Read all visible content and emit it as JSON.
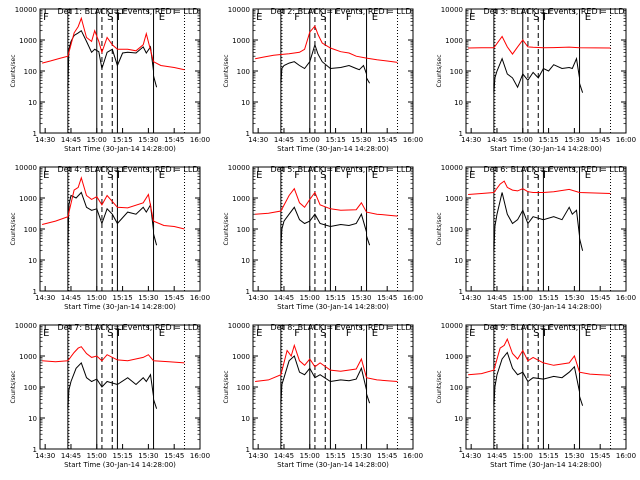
{
  "page": {
    "background": "#ffffff",
    "ink_color": "#000000",
    "events_color": "#000000",
    "lld_color": "#ff0000"
  },
  "shared": {
    "xlabel": "Start Time (30-Jan-14 14:28:00)",
    "ylabel": "Counts/sec",
    "x_ticks": [
      "14:30",
      "14:45",
      "15:00",
      "15:15",
      "15:30",
      "15:45",
      "16:00"
    ],
    "y_ticks": [
      "1",
      "10",
      "100",
      "1000",
      "10000"
    ]
  },
  "chart_data": [
    {
      "type": "line",
      "title": "Det 1: BLACK = Events, RED = LLD",
      "xlabel": "Start Time (30-Jan-14 14:28:00)",
      "ylabel": "Counts/sec",
      "ylog": true,
      "ylim": [
        1,
        10000
      ],
      "x_ticks": [
        "14:30",
        "14:45",
        "15:00",
        "15:15",
        "15:30",
        "15:45",
        "16:00"
      ],
      "region_labels": [
        "F",
        "S",
        "T",
        "E"
      ],
      "series": [
        {
          "name": "Events",
          "x": [
            14.72,
            14.72,
            14.73,
            14.75,
            14.78,
            14.82,
            14.85,
            14.9,
            14.95,
            14.98,
            15.02,
            15.05,
            15.1,
            15.15,
            15.2,
            15.25,
            15.3,
            15.38,
            15.45,
            15.48,
            15.52,
            15.55,
            15.55,
            15.58
          ],
          "y": [
            40,
            30,
            500,
            900,
            1400,
            1700,
            2000,
            900,
            400,
            500,
            420,
            120,
            400,
            500,
            150,
            380,
            400,
            380,
            600,
            380,
            600,
            100,
            70,
            30
          ]
        },
        {
          "name": "LLD",
          "x": [
            14.47,
            14.55,
            14.65,
            14.72,
            14.78,
            14.82,
            14.85,
            14.9,
            14.95,
            14.98,
            15.02,
            15.05,
            15.1,
            15.15,
            15.2,
            15.3,
            15.38,
            15.45,
            15.48,
            15.55,
            15.62,
            15.75,
            15.85
          ],
          "y": [
            180,
            210,
            260,
            300,
            1700,
            2700,
            5000,
            1200,
            900,
            2000,
            900,
            400,
            1200,
            700,
            500,
            500,
            450,
            700,
            1600,
            200,
            150,
            130,
            110
          ]
        }
      ]
    },
    {
      "type": "line",
      "title": "Det 2: BLACK = Events, RED = LLD",
      "xlabel": "Start Time (30-Jan-14 14:28:00)",
      "ylabel": "Counts/sec",
      "ylog": true,
      "ylim": [
        1,
        10000
      ],
      "x_ticks": [
        "14:30",
        "14:45",
        "15:00",
        "15:15",
        "15:30",
        "15:45",
        "16:00"
      ],
      "region_labels": [
        "E",
        "F",
        "S",
        "F",
        "E"
      ],
      "series": [
        {
          "name": "Events",
          "x": [
            14.72,
            14.72,
            14.73,
            14.75,
            14.8,
            14.85,
            14.9,
            14.95,
            15.0,
            15.05,
            15.08,
            15.12,
            15.2,
            15.3,
            15.38,
            15.45,
            15.48,
            15.52,
            15.55,
            15.55,
            15.58
          ],
          "y": [
            60,
            40,
            120,
            150,
            180,
            200,
            150,
            120,
            200,
            700,
            350,
            200,
            120,
            130,
            150,
            120,
            110,
            150,
            80,
            60,
            40
          ]
        },
        {
          "name": "LLD",
          "x": [
            14.47,
            14.55,
            14.65,
            14.72,
            14.8,
            14.9,
            14.95,
            15.0,
            15.05,
            15.08,
            15.12,
            15.2,
            15.3,
            15.38,
            15.45,
            15.55,
            15.65,
            15.75,
            15.85
          ],
          "y": [
            250,
            280,
            320,
            340,
            360,
            400,
            500,
            1800,
            2800,
            1500,
            800,
            550,
            420,
            380,
            300,
            260,
            230,
            210,
            190
          ]
        }
      ]
    },
    {
      "type": "line",
      "title": "Det 3: BLACK = Events, RED = LLD",
      "xlabel": "Start Time (30-Jan-14 14:28:00)",
      "ylabel": "Counts/sec",
      "ylog": true,
      "ylim": [
        1,
        10000
      ],
      "x_ticks": [
        "14:30",
        "14:45",
        "15:00",
        "15:15",
        "15:30",
        "15:45",
        "16:00"
      ],
      "region_labels": [
        "E",
        "S",
        "T",
        "E"
      ],
      "series": [
        {
          "name": "Events",
          "x": [
            14.72,
            14.72,
            14.73,
            14.75,
            14.8,
            14.85,
            14.9,
            14.95,
            15.0,
            15.05,
            15.1,
            15.15,
            15.2,
            15.25,
            15.3,
            15.38,
            15.45,
            15.48,
            15.52,
            15.55,
            15.55,
            15.58
          ],
          "y": [
            40,
            20,
            60,
            100,
            250,
            80,
            60,
            30,
            80,
            50,
            90,
            60,
            120,
            100,
            160,
            120,
            130,
            120,
            250,
            60,
            40,
            20
          ]
        },
        {
          "name": "LLD",
          "x": [
            14.47,
            14.6,
            14.72,
            14.8,
            14.85,
            14.9,
            14.95,
            15.0,
            15.05,
            15.1,
            15.2,
            15.3,
            15.45,
            15.55,
            15.7,
            15.85
          ],
          "y": [
            550,
            560,
            560,
            1300,
            600,
            350,
            600,
            1000,
            600,
            580,
            560,
            570,
            590,
            560,
            555,
            550
          ]
        }
      ]
    },
    {
      "type": "line",
      "title": "Det 4: BLACK = Events, RED = LLD",
      "xlabel": "Start Time (30-Jan-14 14:28:00)",
      "ylabel": "Counts/sec",
      "ylog": true,
      "ylim": [
        1,
        10000
      ],
      "x_ticks": [
        "14:30",
        "14:45",
        "15:00",
        "15:15",
        "15:30",
        "15:45",
        "16:00"
      ],
      "region_labels": [
        "E",
        "S",
        "T",
        "E"
      ],
      "series": [
        {
          "name": "Events",
          "x": [
            14.72,
            14.72,
            14.73,
            14.75,
            14.8,
            14.85,
            14.9,
            14.95,
            15.0,
            15.05,
            15.1,
            15.15,
            15.2,
            15.3,
            15.38,
            15.45,
            15.48,
            15.52,
            15.55,
            15.55,
            15.58
          ],
          "y": [
            50,
            30,
            600,
            1200,
            1000,
            1500,
            500,
            400,
            450,
            150,
            450,
            300,
            150,
            350,
            300,
            500,
            350,
            600,
            90,
            70,
            30
          ]
        },
        {
          "name": "LLD",
          "x": [
            14.47,
            14.6,
            14.72,
            14.78,
            14.82,
            14.85,
            14.9,
            14.95,
            15.0,
            15.05,
            15.1,
            15.2,
            15.3,
            15.45,
            15.5,
            15.55,
            15.65,
            15.75,
            15.85
          ],
          "y": [
            140,
            180,
            250,
            1800,
            2200,
            4500,
            1200,
            900,
            1100,
            600,
            1200,
            500,
            480,
            700,
            1300,
            180,
            130,
            120,
            100
          ]
        }
      ]
    },
    {
      "type": "line",
      "title": "Det 5: BLACK = Events, RED = LLD",
      "xlabel": "Start Time (30-Jan-14 14:28:00)",
      "ylabel": "Counts/sec",
      "ylog": true,
      "ylim": [
        1,
        10000
      ],
      "x_ticks": [
        "14:30",
        "14:45",
        "15:00",
        "15:15",
        "15:30",
        "15:45",
        "16:00"
      ],
      "region_labels": [
        "E",
        "F",
        "S",
        "F",
        "E"
      ],
      "series": [
        {
          "name": "Events",
          "x": [
            14.72,
            14.72,
            14.73,
            14.75,
            14.8,
            14.85,
            14.9,
            14.95,
            15.0,
            15.05,
            15.1,
            15.2,
            15.3,
            15.38,
            15.45,
            15.5,
            15.55,
            15.55,
            15.58
          ],
          "y": [
            40,
            30,
            100,
            180,
            300,
            500,
            200,
            150,
            180,
            300,
            150,
            120,
            140,
            130,
            150,
            300,
            80,
            60,
            30
          ]
        },
        {
          "name": "LLD",
          "x": [
            14.47,
            14.6,
            14.72,
            14.8,
            14.85,
            14.9,
            14.95,
            15.0,
            15.05,
            15.1,
            15.2,
            15.3,
            15.45,
            15.5,
            15.55,
            15.65,
            15.75,
            15.85
          ],
          "y": [
            300,
            320,
            380,
            1200,
            2000,
            700,
            500,
            900,
            1500,
            600,
            450,
            400,
            420,
            700,
            350,
            300,
            280,
            260
          ]
        }
      ]
    },
    {
      "type": "line",
      "title": "Det 6: BLACK = Events, RED = LLD",
      "xlabel": "Start Time (30-Jan-14 14:28:00)",
      "ylabel": "Counts/sec",
      "ylog": true,
      "ylim": [
        1,
        10000
      ],
      "x_ticks": [
        "14:30",
        "14:45",
        "15:00",
        "15:15",
        "15:30",
        "15:45",
        "16:00"
      ],
      "region_labels": [
        "E",
        "S",
        "T",
        "E"
      ],
      "series": [
        {
          "name": "Events",
          "x": [
            14.72,
            14.72,
            14.73,
            14.75,
            14.8,
            14.85,
            14.9,
            14.95,
            15.0,
            15.05,
            15.1,
            15.2,
            15.3,
            15.38,
            15.45,
            15.48,
            15.52,
            15.55,
            15.55,
            15.58
          ],
          "y": [
            40,
            20,
            120,
            300,
            1500,
            300,
            150,
            200,
            400,
            150,
            250,
            200,
            250,
            200,
            500,
            300,
            400,
            60,
            50,
            20
          ]
        },
        {
          "name": "LLD",
          "x": [
            14.47,
            14.6,
            14.72,
            14.78,
            14.82,
            14.85,
            14.9,
            14.95,
            15.0,
            15.05,
            15.1,
            15.2,
            15.3,
            15.45,
            15.55,
            15.7,
            15.85
          ],
          "y": [
            1300,
            1400,
            1500,
            2800,
            3500,
            2200,
            1800,
            1700,
            2000,
            1600,
            1500,
            1500,
            1600,
            1900,
            1500,
            1450,
            1400
          ]
        }
      ]
    },
    {
      "type": "line",
      "title": "Det 7: BLACK = Events, RED = LLD",
      "xlabel": "Start Time (30-Jan-14 14:28:00)",
      "ylabel": "Counts/sec",
      "ylog": true,
      "ylim": [
        1,
        10000
      ],
      "x_ticks": [
        "14:30",
        "14:45",
        "15:00",
        "15:15",
        "15:30",
        "15:45",
        "16:00"
      ],
      "region_labels": [
        "E",
        "S",
        "T",
        "E"
      ],
      "series": [
        {
          "name": "Events",
          "x": [
            14.72,
            14.72,
            14.73,
            14.75,
            14.8,
            14.85,
            14.9,
            14.95,
            15.0,
            15.05,
            15.1,
            15.2,
            15.3,
            15.38,
            15.45,
            15.48,
            15.52,
            15.55,
            15.55,
            15.58
          ],
          "y": [
            30,
            20,
            80,
            150,
            400,
            600,
            200,
            150,
            180,
            100,
            150,
            120,
            200,
            120,
            200,
            150,
            250,
            50,
            40,
            20
          ]
        },
        {
          "name": "LLD",
          "x": [
            14.47,
            14.6,
            14.72,
            14.78,
            14.82,
            14.85,
            14.9,
            14.95,
            15.0,
            15.05,
            15.1,
            15.2,
            15.3,
            15.45,
            15.5,
            15.55,
            15.7,
            15.85
          ],
          "y": [
            700,
            650,
            700,
            1300,
            1800,
            2000,
            1200,
            900,
            1000,
            700,
            1100,
            750,
            700,
            900,
            1100,
            700,
            650,
            600
          ]
        }
      ]
    },
    {
      "type": "line",
      "title": "Det 8: BLACK = Events, RED = LLD",
      "xlabel": "Start Time (30-Jan-14 14:28:00)",
      "ylabel": "Counts/sec",
      "ylog": true,
      "ylim": [
        1,
        10000
      ],
      "x_ticks": [
        "14:30",
        "14:45",
        "15:00",
        "15:15",
        "15:30",
        "15:45",
        "16:00"
      ],
      "region_labels": [
        "E",
        "F",
        "S",
        "F",
        "E"
      ],
      "series": [
        {
          "name": "Events",
          "x": [
            14.72,
            14.72,
            14.73,
            14.75,
            14.8,
            14.85,
            14.9,
            14.95,
            15.0,
            15.05,
            15.1,
            15.2,
            15.3,
            15.38,
            15.45,
            15.5,
            15.55,
            15.55,
            15.58
          ],
          "y": [
            40,
            30,
            120,
            200,
            700,
            1000,
            300,
            250,
            400,
            200,
            250,
            150,
            170,
            160,
            180,
            400,
            80,
            60,
            30
          ]
        },
        {
          "name": "LLD",
          "x": [
            14.47,
            14.6,
            14.72,
            14.78,
            14.82,
            14.85,
            14.9,
            14.95,
            15.0,
            15.05,
            15.1,
            15.2,
            15.3,
            15.45,
            15.5,
            15.55,
            15.65,
            15.75,
            15.85
          ],
          "y": [
            150,
            170,
            250,
            1500,
            1000,
            2200,
            700,
            500,
            800,
            450,
            600,
            350,
            320,
            380,
            800,
            200,
            170,
            160,
            150
          ]
        }
      ]
    },
    {
      "type": "line",
      "title": "Det 9: BLACK = Events, RED = LLD",
      "xlabel": "Start Time (30-Jan-14 14:28:00)",
      "ylabel": "Counts/sec",
      "ylog": true,
      "ylim": [
        1,
        10000
      ],
      "x_ticks": [
        "14:30",
        "14:45",
        "15:00",
        "15:15",
        "15:30",
        "15:45",
        "16:00"
      ],
      "region_labels": [
        "E",
        "S",
        "T",
        "E"
      ],
      "series": [
        {
          "name": "Events",
          "x": [
            14.72,
            14.72,
            14.73,
            14.75,
            14.8,
            14.85,
            14.9,
            14.95,
            15.0,
            15.05,
            15.1,
            15.2,
            15.3,
            15.38,
            15.45,
            15.5,
            15.55,
            15.55,
            15.58
          ],
          "y": [
            40,
            25,
            100,
            250,
            800,
            1300,
            400,
            250,
            300,
            150,
            200,
            180,
            220,
            200,
            300,
            450,
            70,
            50,
            25
          ]
        },
        {
          "name": "LLD",
          "x": [
            14.47,
            14.6,
            14.72,
            14.78,
            14.82,
            14.85,
            14.9,
            14.95,
            15.0,
            15.05,
            15.1,
            15.2,
            15.3,
            15.45,
            15.5,
            15.55,
            15.65,
            15.75,
            15.85
          ],
          "y": [
            250,
            270,
            350,
            1800,
            2200,
            3500,
            1200,
            800,
            1500,
            700,
            900,
            600,
            500,
            600,
            1000,
            300,
            260,
            250,
            240
          ]
        }
      ]
    }
  ]
}
